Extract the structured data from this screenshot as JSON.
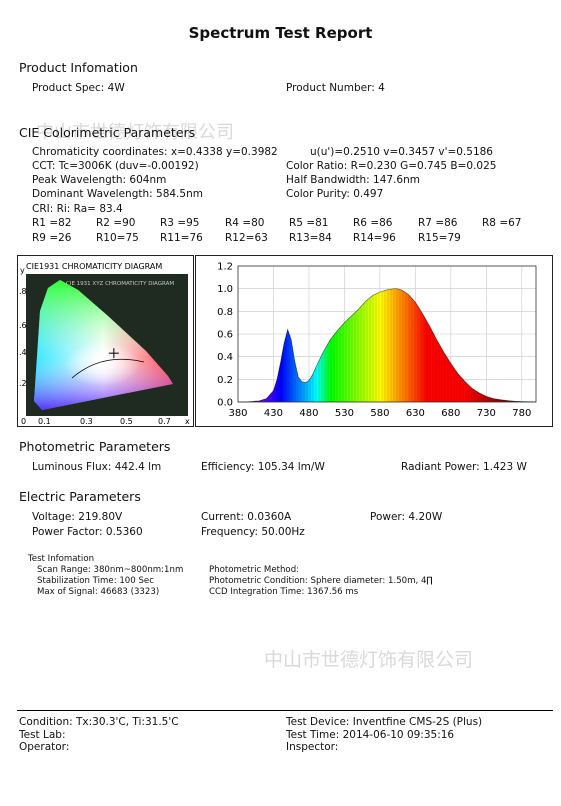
{
  "report_title": "Spectrum Test Report",
  "product": {
    "heading": "Product Infomation",
    "spec": "Product Spec: 4W",
    "number": "Product Number: 4"
  },
  "cie": {
    "heading": "CIE Colorimetric Parameters",
    "chromaticity": "Chromaticity coordinates: x=0.4338 y=0.3982",
    "uv": "u(u')=0.2510 v=0.3457 v'=0.5186",
    "cct": "CCT: Tc=3006K (duv=-0.00192)",
    "color_ratio": "Color Ratio: R=0.230  G=0.745  B=0.025",
    "peak_wl": "Peak Wavelength: 604nm",
    "half_bw": "Half Bandwidth: 147.6nm",
    "dominant_wl": "Dominant Wavelength: 584.5nm",
    "purity": "Color Purity: 0.497",
    "cri": "CRI: Ri: Ra= 83.4",
    "r_row1": [
      "R1 =82",
      "R2 =90",
      "R3 =95",
      "R4 =80",
      "R5 =81",
      "R6 =86",
      "R7 =86",
      "R8 =67"
    ],
    "r_row2": [
      "R9 =26",
      "R10=75",
      "R11=76",
      "R12=63",
      "R13=84",
      "R14=96",
      "R15=79"
    ]
  },
  "cie_diagram": {
    "title": "CIE1931 CHROMATICITY DIAGRAM",
    "inner_title": "CIE 1931 XYZ CHROMATICITY DIAGRAM",
    "y_label": "y",
    "x_label": "x",
    "y_ticks": [
      ".8",
      ".6",
      ".4",
      ".2"
    ],
    "x_ticks": [
      "0",
      "0.1",
      "0.3",
      "0.5",
      "0.7"
    ],
    "point": {
      "x": 0.4338,
      "y": 0.3982
    }
  },
  "chart_data": {
    "type": "area",
    "title": "",
    "xlabel": "",
    "ylabel": "",
    "xlim": [
      380,
      800
    ],
    "ylim": [
      0,
      1.2
    ],
    "x_ticks": [
      380,
      430,
      480,
      530,
      580,
      630,
      680,
      730,
      780
    ],
    "y_ticks": [
      0.0,
      0.2,
      0.4,
      0.6,
      0.8,
      1.0,
      1.2
    ],
    "y_tick_labels": [
      "0.0",
      "0.2",
      "0.4",
      "0.6",
      "0.8",
      "1.0",
      "1.2"
    ],
    "grid": true,
    "x": [
      380,
      390,
      400,
      410,
      420,
      430,
      435,
      440,
      445,
      450,
      455,
      460,
      465,
      470,
      475,
      480,
      485,
      490,
      500,
      510,
      520,
      530,
      540,
      550,
      560,
      570,
      580,
      590,
      600,
      604,
      610,
      620,
      630,
      640,
      650,
      660,
      670,
      680,
      690,
      700,
      710,
      720,
      730,
      740,
      750,
      760,
      770,
      780,
      790,
      800
    ],
    "values": [
      0.0,
      0.0,
      0.005,
      0.01,
      0.03,
      0.1,
      0.2,
      0.35,
      0.52,
      0.64,
      0.55,
      0.36,
      0.22,
      0.18,
      0.17,
      0.19,
      0.24,
      0.31,
      0.44,
      0.55,
      0.63,
      0.7,
      0.76,
      0.82,
      0.89,
      0.94,
      0.97,
      0.99,
      1.0,
      1.0,
      0.99,
      0.95,
      0.88,
      0.78,
      0.67,
      0.55,
      0.44,
      0.34,
      0.25,
      0.18,
      0.12,
      0.08,
      0.05,
      0.03,
      0.02,
      0.012,
      0.007,
      0.004,
      0.002,
      0.001
    ]
  },
  "photometric": {
    "heading": "Photometric Parameters",
    "flux": "Luminous Flux: 442.4 lm",
    "efficiency": "Efficiency: 105.34 lm/W",
    "radiant": "Radiant Power: 1.423 W"
  },
  "electric": {
    "heading": "Electric Parameters",
    "voltage": "Voltage: 219.80V",
    "current": "Current: 0.0360A",
    "power": "Power: 4.20W",
    "pf": "Power Factor: 0.5360",
    "freq": "Frequency: 50.00Hz"
  },
  "test_info": {
    "heading": "Test Infomation",
    "scan_range": "Scan Range: 380nm~800nm:1nm",
    "stab_time": "Stabilization Time: 100 Sec",
    "max_signal": "Max of Signal: 46683 (3323)",
    "method": "Photometric Method:",
    "condition": "Photometric Condition: Sphere diameter: 1.50m, 4∏",
    "ccd": "CCD Integration Time: 1367.56 ms"
  },
  "footer": {
    "condition": "Condition: Tx:30.3'C, Ti:31.5'C",
    "lab": "Test Lab:",
    "operator": "Operator:",
    "device": "Test Device: Inventfine CMS-2S (Plus)",
    "time": "Test Time: 2014-06-10 09:35:16",
    "inspector": "Inspector:"
  },
  "watermarks": {
    "top": "中山市世德灯饰有限公司",
    "middle": "中山市世德灯饰有限公司"
  }
}
